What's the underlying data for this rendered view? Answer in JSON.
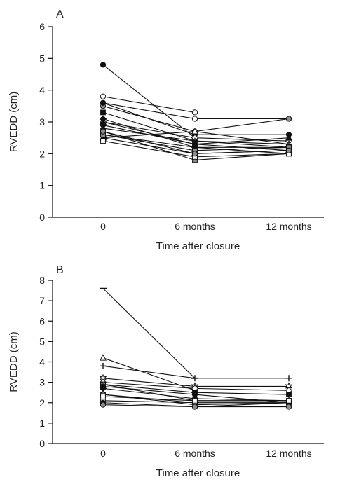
{
  "chart_data": [
    {
      "type": "line",
      "panel_label": "A",
      "categories": [
        "0",
        "6 months",
        "12 months"
      ],
      "xlabel": "Time after closure",
      "ylabel": "RVEDD (cm)",
      "ylim": [
        0,
        6
      ],
      "yticks": [
        0,
        1,
        2,
        3,
        4,
        5,
        6
      ],
      "grid": false,
      "series": [
        {
          "marker": "filled-circle",
          "values": [
            4.8,
            2.5,
            null
          ]
        },
        {
          "marker": "open-circle",
          "values": [
            3.8,
            3.3,
            null
          ]
        },
        {
          "marker": "open-circle",
          "values": [
            3.6,
            3.1,
            3.1
          ]
        },
        {
          "marker": "grey-circle",
          "values": [
            3.5,
            2.7,
            3.1
          ]
        },
        {
          "marker": "filled-square",
          "values": [
            3.3,
            2.4,
            2.2
          ]
        },
        {
          "marker": "filled-circle",
          "values": [
            3.6,
            2.6,
            2.6
          ]
        },
        {
          "marker": "open-diamond",
          "values": [
            3.0,
            2.5,
            2.4
          ]
        },
        {
          "marker": "filled-diamond",
          "values": [
            3.1,
            2.2,
            2.2
          ]
        },
        {
          "marker": "grey-square",
          "values": [
            2.7,
            1.8,
            2.0
          ]
        },
        {
          "marker": "open-triangle",
          "values": [
            2.5,
            2.7,
            2.3
          ]
        },
        {
          "marker": "cross",
          "values": [
            2.8,
            2.4,
            2.3
          ]
        },
        {
          "marker": "x",
          "values": [
            2.6,
            2.2,
            2.0
          ]
        },
        {
          "marker": "star",
          "values": [
            2.5,
            2.0,
            2.1
          ]
        },
        {
          "marker": "filled-circle",
          "values": [
            2.9,
            2.3,
            2.1
          ]
        },
        {
          "marker": "grey-square",
          "values": [
            2.6,
            2.1,
            2.2
          ]
        },
        {
          "marker": "open-square",
          "values": [
            2.4,
            1.9,
            2.0
          ]
        },
        {
          "marker": "filled-triangle",
          "values": [
            3.0,
            2.3,
            2.5
          ]
        },
        {
          "marker": "grey-circle",
          "values": [
            2.7,
            2.0,
            2.1
          ]
        }
      ]
    },
    {
      "type": "line",
      "panel_label": "B",
      "categories": [
        "0",
        "6 months",
        "12 months"
      ],
      "xlabel": "Time after closure",
      "ylabel": "RVEDD (cm)",
      "ylim": [
        0,
        8
      ],
      "yticks": [
        0,
        1,
        2,
        3,
        4,
        5,
        6,
        7,
        8
      ],
      "grid": false,
      "series": [
        {
          "marker": "dash",
          "values": [
            7.6,
            3.2,
            null
          ]
        },
        {
          "marker": "open-triangle",
          "values": [
            4.2,
            2.6,
            null
          ]
        },
        {
          "marker": "cross",
          "values": [
            3.8,
            3.2,
            3.2
          ]
        },
        {
          "marker": "open-star",
          "values": [
            3.2,
            2.8,
            2.8
          ]
        },
        {
          "marker": "open-diamond",
          "values": [
            3.0,
            2.7,
            2.6
          ]
        },
        {
          "marker": "filled-square",
          "values": [
            2.9,
            2.5,
            2.4
          ]
        },
        {
          "marker": "grey-circle",
          "values": [
            2.9,
            2.1,
            2.1
          ]
        },
        {
          "marker": "filled-circle",
          "values": [
            2.8,
            2.4,
            2.0
          ]
        },
        {
          "marker": "filled-diamond",
          "values": [
            2.7,
            2.2,
            2.1
          ]
        },
        {
          "marker": "grey-square",
          "values": [
            2.4,
            2.0,
            2.0
          ]
        },
        {
          "marker": "x",
          "values": [
            2.4,
            1.9,
            2.0
          ]
        },
        {
          "marker": "open-circle",
          "values": [
            2.1,
            2.0,
            2.0
          ]
        },
        {
          "marker": "filled-circle",
          "values": [
            2.0,
            1.8,
            2.0
          ]
        },
        {
          "marker": "grey-circle",
          "values": [
            1.9,
            1.8,
            1.8
          ]
        },
        {
          "marker": "open-square",
          "values": [
            2.3,
            2.1,
            2.1
          ]
        }
      ]
    }
  ]
}
